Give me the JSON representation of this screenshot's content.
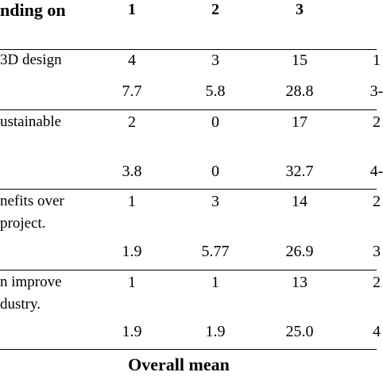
{
  "table": {
    "header": {
      "label": "nding on",
      "columns": [
        "1",
        "2",
        "3"
      ]
    },
    "rows": [
      {
        "label_lines": [
          "3D design"
        ],
        "counts": [
          "4",
          "3",
          "15",
          "1"
        ],
        "percents": [
          "7.7",
          "5.8",
          "28.8",
          "3-"
        ]
      },
      {
        "label_lines": [
          "ustainable"
        ],
        "counts": [
          "2",
          "0",
          "17",
          "2"
        ],
        "percents": [
          "3.8",
          "0",
          "32.7",
          "4-"
        ]
      },
      {
        "label_lines": [
          "nefits over",
          "project."
        ],
        "counts": [
          "1",
          "3",
          "14",
          "2"
        ],
        "percents": [
          "1.9",
          "5.77",
          "26.9",
          "3"
        ]
      },
      {
        "label_lines": [
          "n improve",
          "dustry."
        ],
        "counts": [
          "1",
          "1",
          "13",
          "2"
        ],
        "percents": [
          "1.9",
          "1.9",
          "25.0",
          "4"
        ]
      }
    ],
    "footer": "Overall mean"
  }
}
